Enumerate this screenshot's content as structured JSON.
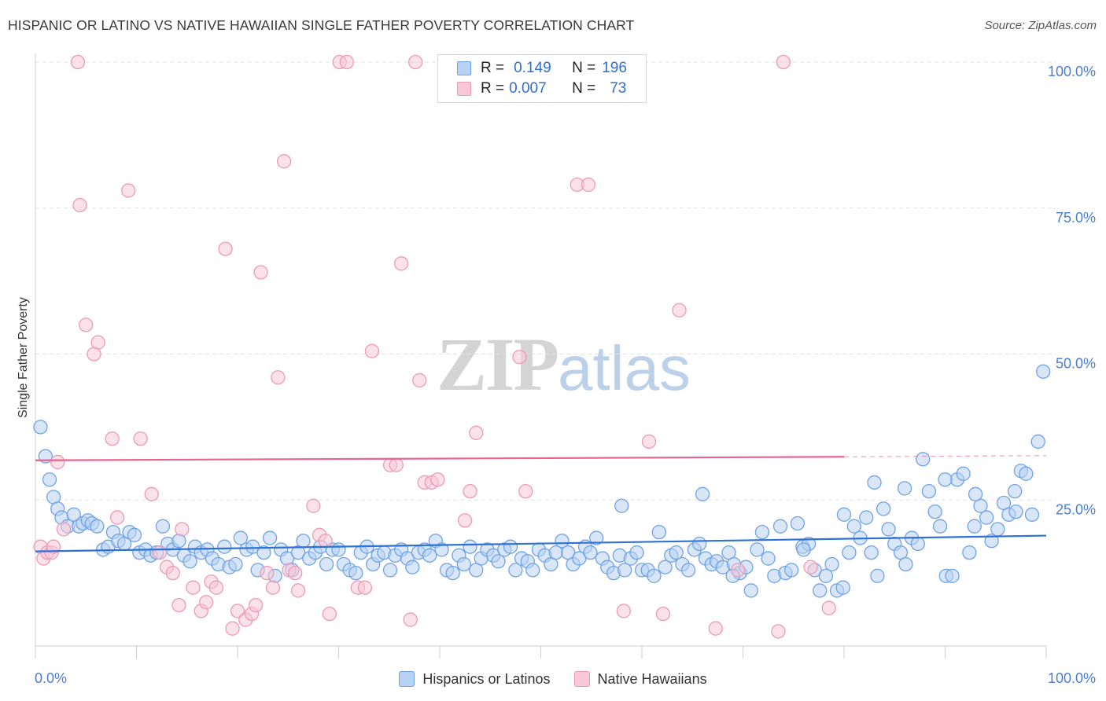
{
  "chart_data": {
    "type": "scatter",
    "title": "HISPANIC OR LATINO VS NATIVE HAWAIIAN SINGLE FATHER POVERTY CORRELATION CHART",
    "source": "Source: ZipAtlas.com",
    "xlabel": "",
    "ylabel": "Single Father Poverty",
    "xlim": [
      0,
      100
    ],
    "ylim": [
      0,
      105
    ],
    "x_tick_labels": [
      "0.0%",
      "100.0%"
    ],
    "y_ticks": [
      25,
      50,
      75,
      100
    ],
    "y_tick_labels": [
      "25.0%",
      "50.0%",
      "75.0%",
      "100.0%"
    ],
    "grid": "horizontal dashed",
    "watermark": {
      "zip": "ZIP",
      "atlas": "atlas"
    },
    "legend": {
      "placement": "top-center",
      "rows": [
        {
          "r_key": "R =",
          "r_value": "0.149",
          "n_key": "N =",
          "n_value": "196"
        },
        {
          "r_key": "R =",
          "r_value": "0.007",
          "n_key": "N =",
          "n_value": "73"
        }
      ]
    },
    "series": [
      {
        "name": "Hispanics or Latinos",
        "color": "#6fa3e6",
        "fill": "#b8d2f3",
        "line_color": "#2f72d4",
        "trend": {
          "x": [
            0,
            100
          ],
          "y": [
            16.2,
            18.9
          ]
        },
        "trend_dashed": null,
        "points": [
          [
            0.5,
            37.5
          ],
          [
            1,
            32.5
          ],
          [
            1.4,
            28.5
          ],
          [
            1.8,
            25.5
          ],
          [
            2.2,
            23.5
          ],
          [
            2.6,
            22
          ],
          [
            3.2,
            20.5
          ],
          [
            3.8,
            22.5
          ],
          [
            4.3,
            20.5
          ],
          [
            4.7,
            21
          ],
          [
            5.2,
            21.5
          ],
          [
            5.6,
            21
          ],
          [
            6.1,
            20.5
          ],
          [
            6.7,
            16.5
          ],
          [
            7.2,
            17
          ],
          [
            7.7,
            19.5
          ],
          [
            8.2,
            18
          ],
          [
            8.8,
            17.5
          ],
          [
            9.3,
            19.5
          ],
          [
            9.8,
            19
          ],
          [
            10.3,
            16
          ],
          [
            10.9,
            16.5
          ],
          [
            11.4,
            15.5
          ],
          [
            12,
            16
          ],
          [
            12.6,
            20.5
          ],
          [
            13.1,
            17.5
          ],
          [
            13.6,
            16.5
          ],
          [
            14.2,
            18
          ],
          [
            14.7,
            15.5
          ],
          [
            15.3,
            14.5
          ],
          [
            15.8,
            17
          ],
          [
            16.4,
            16
          ],
          [
            17,
            16.5
          ],
          [
            17.5,
            15
          ],
          [
            18.1,
            14
          ],
          [
            18.7,
            17
          ],
          [
            19.2,
            13.5
          ],
          [
            19.8,
            14
          ],
          [
            20.3,
            18.5
          ],
          [
            20.9,
            16.5
          ],
          [
            21.5,
            17
          ],
          [
            22,
            13
          ],
          [
            22.6,
            16
          ],
          [
            23.2,
            18.5
          ],
          [
            23.7,
            12
          ],
          [
            24.3,
            16.5
          ],
          [
            24.9,
            15
          ],
          [
            25.4,
            13
          ],
          [
            26,
            16
          ],
          [
            26.5,
            18
          ],
          [
            27.1,
            15
          ],
          [
            27.7,
            16
          ],
          [
            28.2,
            17
          ],
          [
            28.8,
            14
          ],
          [
            29.4,
            16.5
          ],
          [
            30,
            16.5
          ],
          [
            30.5,
            14
          ],
          [
            31.1,
            13
          ],
          [
            31.7,
            12.5
          ],
          [
            32.2,
            16
          ],
          [
            32.8,
            17
          ],
          [
            33.4,
            14
          ],
          [
            33.9,
            15.5
          ],
          [
            34.5,
            16
          ],
          [
            35.1,
            13
          ],
          [
            35.6,
            15.5
          ],
          [
            36.2,
            16.5
          ],
          [
            36.8,
            15
          ],
          [
            37.3,
            13.5
          ],
          [
            37.9,
            16
          ],
          [
            38.5,
            16.5
          ],
          [
            39,
            15.5
          ],
          [
            39.6,
            18
          ],
          [
            40.2,
            16.5
          ],
          [
            40.7,
            13
          ],
          [
            41.3,
            12.5
          ],
          [
            41.9,
            15.5
          ],
          [
            42.4,
            14
          ],
          [
            43,
            17
          ],
          [
            43.6,
            13
          ],
          [
            44.1,
            15
          ],
          [
            44.7,
            16.5
          ],
          [
            45.3,
            15.5
          ],
          [
            45.8,
            14.5
          ],
          [
            46.4,
            16.5
          ],
          [
            47,
            17
          ],
          [
            47.5,
            13
          ],
          [
            48.1,
            15
          ],
          [
            48.7,
            14.5
          ],
          [
            49.2,
            13
          ],
          [
            49.8,
            16.5
          ],
          [
            50.4,
            15.5
          ],
          [
            51,
            14
          ],
          [
            51.5,
            16
          ],
          [
            52.1,
            18
          ],
          [
            52.7,
            16
          ],
          [
            53.2,
            14
          ],
          [
            53.8,
            15
          ],
          [
            54.4,
            17
          ],
          [
            54.9,
            16
          ],
          [
            55.5,
            18.5
          ],
          [
            56.1,
            15
          ],
          [
            56.6,
            13.5
          ],
          [
            57.2,
            12.5
          ],
          [
            57.8,
            15.5
          ],
          [
            58.3,
            13
          ],
          [
            58.9,
            15
          ],
          [
            59.5,
            16
          ],
          [
            60,
            13
          ],
          [
            60.6,
            13
          ],
          [
            61.2,
            12
          ],
          [
            61.7,
            19.5
          ],
          [
            62.3,
            13.5
          ],
          [
            62.9,
            15.5
          ],
          [
            63.4,
            16
          ],
          [
            64,
            14
          ],
          [
            64.6,
            13
          ],
          [
            65.2,
            16.5
          ],
          [
            65.7,
            17.5
          ],
          [
            66.3,
            15
          ],
          [
            66.9,
            14
          ],
          [
            67.4,
            14.5
          ],
          [
            68,
            13.5
          ],
          [
            68.6,
            16
          ],
          [
            69.1,
            14
          ],
          [
            69.7,
            12.5
          ],
          [
            70.3,
            13.5
          ],
          [
            70.8,
            9.5
          ],
          [
            71.4,
            16.5
          ],
          [
            71.9,
            19.5
          ],
          [
            72.5,
            15
          ],
          [
            73.1,
            12
          ],
          [
            73.7,
            20.5
          ],
          [
            74.2,
            12.5
          ],
          [
            74.8,
            13
          ],
          [
            75.4,
            21
          ],
          [
            75.9,
            17
          ],
          [
            76.5,
            17.5
          ],
          [
            77.1,
            13
          ],
          [
            77.6,
            9.5
          ],
          [
            78.2,
            12
          ],
          [
            78.8,
            14
          ],
          [
            79.3,
            9.5
          ],
          [
            79.9,
            10
          ],
          [
            80.5,
            16
          ],
          [
            81,
            20.5
          ],
          [
            81.6,
            18.5
          ],
          [
            82.2,
            22
          ],
          [
            82.7,
            16
          ],
          [
            83.3,
            12
          ],
          [
            83.9,
            23.5
          ],
          [
            84.4,
            20
          ],
          [
            85,
            17.5
          ],
          [
            85.6,
            16
          ],
          [
            86.1,
            14
          ],
          [
            86.7,
            18.5
          ],
          [
            87.3,
            17.5
          ],
          [
            87.8,
            32
          ],
          [
            88.4,
            26.5
          ],
          [
            89,
            23
          ],
          [
            89.5,
            20.5
          ],
          [
            90.1,
            12
          ],
          [
            90.7,
            12
          ],
          [
            91.2,
            28.5
          ],
          [
            91.8,
            29.5
          ],
          [
            92.4,
            16
          ],
          [
            92.9,
            20.5
          ],
          [
            93.5,
            24
          ],
          [
            94.1,
            22
          ],
          [
            94.6,
            18
          ],
          [
            95.2,
            20
          ],
          [
            95.8,
            24.5
          ],
          [
            96.3,
            22.5
          ],
          [
            96.9,
            26.5
          ],
          [
            97.5,
            30
          ],
          [
            98,
            29.5
          ],
          [
            98.6,
            22.5
          ],
          [
            99.2,
            35
          ],
          [
            99.7,
            47
          ],
          [
            83,
            28
          ],
          [
            86,
            27
          ],
          [
            90,
            28.5
          ],
          [
            93,
            26
          ],
          [
            97,
            23
          ],
          [
            80,
            22.5
          ],
          [
            76,
            16.5
          ],
          [
            69,
            12
          ],
          [
            66,
            26
          ],
          [
            58,
            24
          ]
        ]
      },
      {
        "name": "Native Hawaiians",
        "color": "#ee9ab5",
        "fill": "#f8c8d7",
        "line_color": "#e5668f",
        "trend": {
          "x": [
            0,
            80
          ],
          "y": [
            31.8,
            32.4
          ]
        },
        "trend_dashed": {
          "x": [
            80,
            100
          ],
          "y": [
            32.4,
            32.6
          ]
        },
        "points": [
          [
            0.5,
            17
          ],
          [
            0.8,
            15
          ],
          [
            1.2,
            16
          ],
          [
            1.6,
            16
          ],
          [
            1.8,
            17
          ],
          [
            2.2,
            31.5
          ],
          [
            2.8,
            20
          ],
          [
            4.2,
            100
          ],
          [
            4.4,
            75.5
          ],
          [
            5,
            55
          ],
          [
            5.8,
            50
          ],
          [
            6.2,
            52
          ],
          [
            7.6,
            35.5
          ],
          [
            8.1,
            22
          ],
          [
            9.2,
            78
          ],
          [
            10.4,
            35.5
          ],
          [
            11.5,
            26
          ],
          [
            12.3,
            16
          ],
          [
            13,
            13.5
          ],
          [
            13.6,
            12.5
          ],
          [
            14.2,
            7
          ],
          [
            14.5,
            20
          ],
          [
            15.6,
            10
          ],
          [
            16.4,
            6
          ],
          [
            16.9,
            7.5
          ],
          [
            17.4,
            11
          ],
          [
            17.9,
            10
          ],
          [
            18.8,
            68
          ],
          [
            19.5,
            3
          ],
          [
            20,
            6
          ],
          [
            20.8,
            4.5
          ],
          [
            21.4,
            5.5
          ],
          [
            21.8,
            7
          ],
          [
            22.3,
            64
          ],
          [
            22.9,
            12.5
          ],
          [
            23.5,
            10
          ],
          [
            24,
            46
          ],
          [
            24.6,
            83
          ],
          [
            25.1,
            13
          ],
          [
            25.7,
            12.5
          ],
          [
            26,
            9.5
          ],
          [
            27.5,
            24
          ],
          [
            28.1,
            19
          ],
          [
            28.7,
            18
          ],
          [
            29.1,
            5.5
          ],
          [
            30.1,
            100
          ],
          [
            30.8,
            100
          ],
          [
            31.9,
            10
          ],
          [
            32.6,
            10
          ],
          [
            33.3,
            50.5
          ],
          [
            35.1,
            31
          ],
          [
            35.7,
            31
          ],
          [
            36.2,
            65.5
          ],
          [
            37.1,
            4.5
          ],
          [
            37.6,
            100
          ],
          [
            38,
            45.5
          ],
          [
            38.5,
            28
          ],
          [
            39.2,
            28
          ],
          [
            39.8,
            28.5
          ],
          [
            42.5,
            21.5
          ],
          [
            43,
            26.5
          ],
          [
            43.6,
            36.5
          ],
          [
            47.9,
            49.5
          ],
          [
            48.5,
            26.5
          ],
          [
            53.6,
            79
          ],
          [
            54.7,
            79
          ],
          [
            58.2,
            6
          ],
          [
            60.7,
            35
          ],
          [
            62.1,
            5.5
          ],
          [
            63.7,
            57.5
          ],
          [
            67.3,
            3
          ],
          [
            69.5,
            13
          ],
          [
            73.5,
            2.5
          ],
          [
            74,
            100
          ],
          [
            76.7,
            13.5
          ],
          [
            78.5,
            6.5
          ]
        ]
      }
    ]
  },
  "legend_bottom": [
    {
      "label": "Hispanics or Latinos"
    },
    {
      "label": "Native Hawaiians"
    }
  ]
}
